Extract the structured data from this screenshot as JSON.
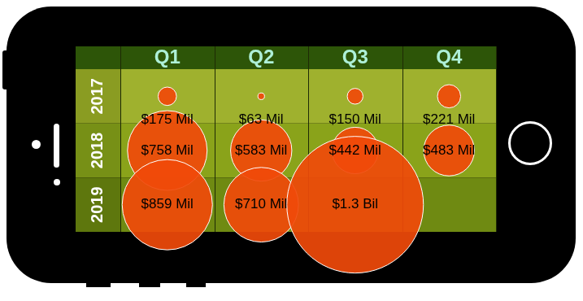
{
  "chart_data": {
    "type": "bubble",
    "categories": [
      "Q1",
      "Q2",
      "Q3",
      "Q4"
    ],
    "rows": [
      "2017",
      "2018",
      "2019"
    ],
    "values": [
      [
        175,
        63,
        150,
        221
      ],
      [
        758,
        583,
        442,
        483
      ],
      [
        859,
        710,
        1300,
        null
      ]
    ],
    "value_labels": [
      [
        "$175 Mil",
        "$63 Mil",
        "$150 Mil",
        "$221 Mil"
      ],
      [
        "$758 Mil",
        "$583 Mil",
        "$442 Mil",
        "$483 Mil"
      ],
      [
        "$859 Mil",
        "$710 Mil",
        "$1.3 Bil",
        null
      ]
    ],
    "color": "#f04a0a",
    "data_labels": true,
    "grid": true
  }
}
